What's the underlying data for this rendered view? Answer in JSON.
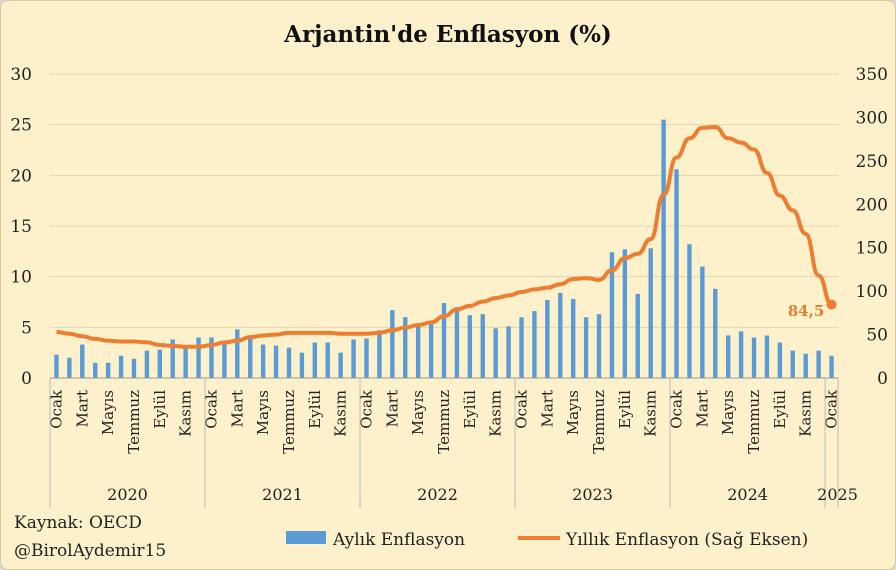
{
  "chart_data": {
    "type": "bar+line",
    "title": "Arjantin'de Enflasyon (%)",
    "left_axis": {
      "min": 0,
      "max": 30,
      "ticks": [
        0,
        5,
        10,
        15,
        20,
        25,
        30
      ]
    },
    "right_axis": {
      "min": 0,
      "max": 350,
      "ticks": [
        0,
        50,
        100,
        150,
        200,
        250,
        300,
        350
      ]
    },
    "month_labels": [
      "Ocak",
      "Mart",
      "Mayıs",
      "Temmuz",
      "Eylül",
      "Kasım"
    ],
    "years": [
      "2020",
      "2021",
      "2022",
      "2023",
      "2024",
      "2025"
    ],
    "series": [
      {
        "name": "Aylık Enflasyon",
        "axis": "left",
        "color": "#5b9bd5",
        "values": [
          2.3,
          2.0,
          3.3,
          1.5,
          1.5,
          2.2,
          1.9,
          2.7,
          2.8,
          3.8,
          3.2,
          4.0,
          4.0,
          3.6,
          4.8,
          4.1,
          3.3,
          3.2,
          3.0,
          2.5,
          3.5,
          3.5,
          2.5,
          3.8,
          3.9,
          4.7,
          6.7,
          6.0,
          5.1,
          5.3,
          7.4,
          7.0,
          6.2,
          6.3,
          4.9,
          5.1,
          6.0,
          6.6,
          7.7,
          8.4,
          7.8,
          6.0,
          6.3,
          12.4,
          12.7,
          8.3,
          12.8,
          25.5,
          20.6,
          13.2,
          11.0,
          8.8,
          4.2,
          4.6,
          4.0,
          4.2,
          3.5,
          2.7,
          2.4,
          2.7,
          2.2
        ]
      },
      {
        "name": "Yıllık Enflasyon (Sağ Eksen)",
        "axis": "right",
        "color": "#ed7d31",
        "values": [
          53,
          51,
          48,
          45,
          43,
          42,
          42,
          41,
          38,
          37,
          36,
          36,
          38,
          41,
          43,
          47,
          49,
          50,
          52,
          52,
          52,
          52,
          51,
          51,
          51,
          52,
          55,
          58,
          61,
          64,
          71,
          79,
          83,
          88,
          92,
          95,
          99,
          102,
          104,
          108,
          114,
          115,
          113,
          124,
          138,
          143,
          160,
          211,
          254,
          276,
          288,
          289,
          276,
          271,
          263,
          236,
          210,
          193,
          166,
          118,
          84.5
        ]
      }
    ],
    "annotation": "84,5",
    "source": "Kaynak: OECD",
    "author": "@BirolAydemir15"
  }
}
